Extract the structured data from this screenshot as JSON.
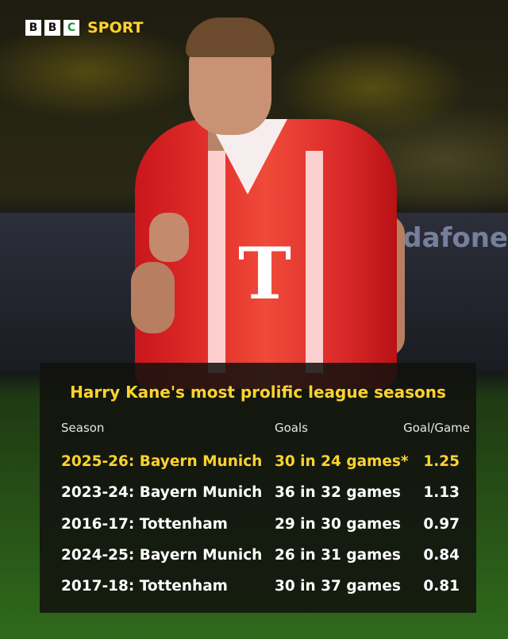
{
  "brand": {
    "blocks": [
      "B",
      "B",
      "C"
    ],
    "name": "SPORT",
    "accent": "#ffd230"
  },
  "background": {
    "advert_text": "odafone"
  },
  "chart_data": {
    "type": "table",
    "title": "Harry Kane's most prolific league seasons",
    "columns": [
      "Season",
      "Goals",
      "Goal/Game"
    ],
    "rows": [
      {
        "season": "2025-26: Bayern Munich",
        "goals": "30 in 24 games*",
        "gpg": "1.25",
        "highlight": true
      },
      {
        "season": "2023-24: Bayern Munich",
        "goals": "36 in 32 games",
        "gpg": "1.13",
        "highlight": false
      },
      {
        "season": "2016-17: Tottenham",
        "goals": "29 in 30 games",
        "gpg": "0.97",
        "highlight": false
      },
      {
        "season": "2024-25: Bayern Munich",
        "goals": "26 in 31 games",
        "gpg": "0.84",
        "highlight": false
      },
      {
        "season": "2017-18: Tottenham",
        "goals": "30 in 37 games",
        "gpg": "0.81",
        "highlight": false
      }
    ]
  }
}
